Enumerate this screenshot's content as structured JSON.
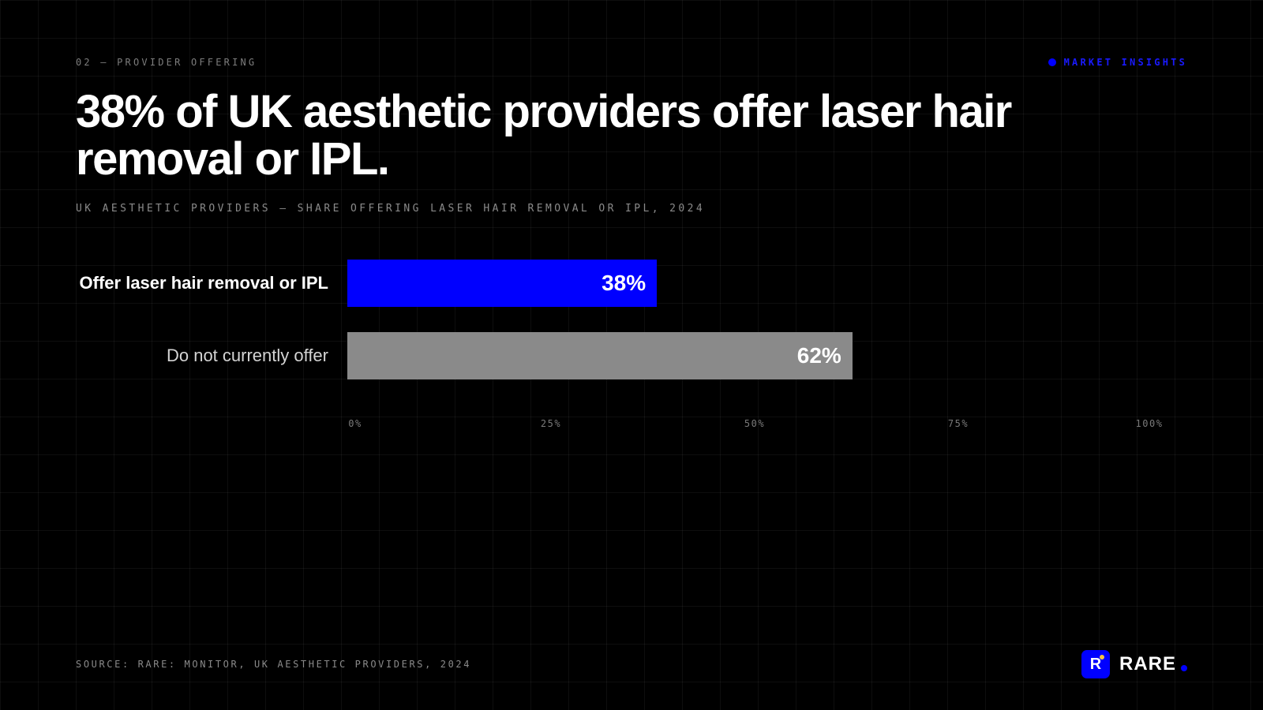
{
  "header": {
    "eyebrow": "02 — PROVIDER OFFERING",
    "badge": "MARKET INSIGHTS"
  },
  "headline": "38% of UK aesthetic providers offer laser hair removal or IPL.",
  "subtitle": "UK AESTHETIC PROVIDERS — SHARE OFFERING LASER HAIR REMOVAL OR IPL, 2024",
  "footer": {
    "source": "SOURCE: RARE: MONITOR, UK AESTHETIC PROVIDERS, 2024",
    "brand": "RARE",
    "brand_mark": "R"
  },
  "colors": {
    "accent": "#0000ff",
    "secondary_bar": "#8a8a8a",
    "background": "#000000"
  },
  "chart_data": {
    "type": "bar",
    "orientation": "horizontal",
    "categories": [
      "Offer laser hair removal or IPL",
      "Do not currently offer"
    ],
    "values": [
      38,
      62
    ],
    "value_labels": [
      "38%",
      "62%"
    ],
    "xlim": [
      0,
      100
    ],
    "x_ticks": [
      0,
      25,
      50,
      75,
      100
    ],
    "x_tick_labels": [
      "0%",
      "25%",
      "50%",
      "75%",
      "100%"
    ],
    "grid": true
  }
}
